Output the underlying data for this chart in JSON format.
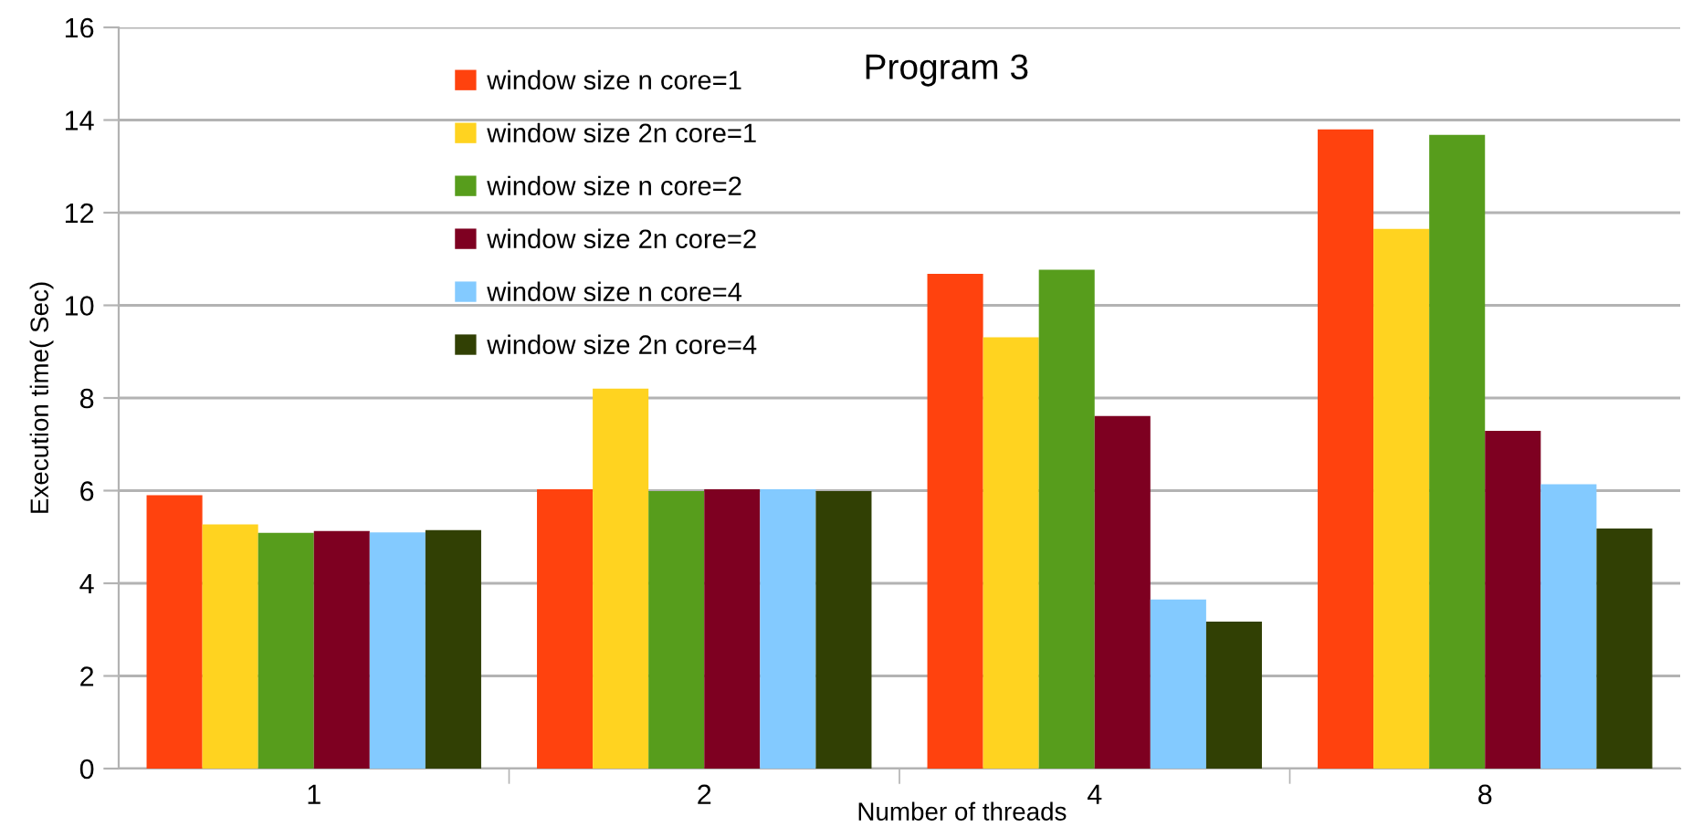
{
  "chart_data": {
    "type": "bar",
    "title": "Program 3",
    "xlabel": "Number of threads",
    "ylabel": "Execution time( Sec)",
    "categories": [
      "1",
      "2",
      "4",
      "8"
    ],
    "series": [
      {
        "name": "window size n core=1",
        "color": "#ff420e",
        "values": [
          5.9,
          6.03,
          10.68,
          13.8
        ]
      },
      {
        "name": "window size 2n core=1",
        "color": "#ffd320",
        "values": [
          5.27,
          8.2,
          9.31,
          11.65
        ]
      },
      {
        "name": "window size n core=2",
        "color": "#579d1c",
        "values": [
          5.09,
          5.99,
          10.77,
          13.68
        ]
      },
      {
        "name": "window size 2n core=2",
        "color": "#7e0021",
        "values": [
          5.13,
          6.03,
          7.61,
          7.29
        ]
      },
      {
        "name": "window size n core=4",
        "color": "#83caff",
        "values": [
          5.1,
          6.03,
          3.65,
          6.14
        ]
      },
      {
        "name": "window size 2n core=4",
        "color": "#314004",
        "values": [
          5.15,
          5.99,
          3.17,
          5.18
        ]
      }
    ],
    "ylim": [
      0,
      16
    ],
    "yticks": [
      0,
      2,
      4,
      6,
      8,
      10,
      12,
      14,
      16
    ],
    "grid": "y",
    "legend": "top"
  }
}
